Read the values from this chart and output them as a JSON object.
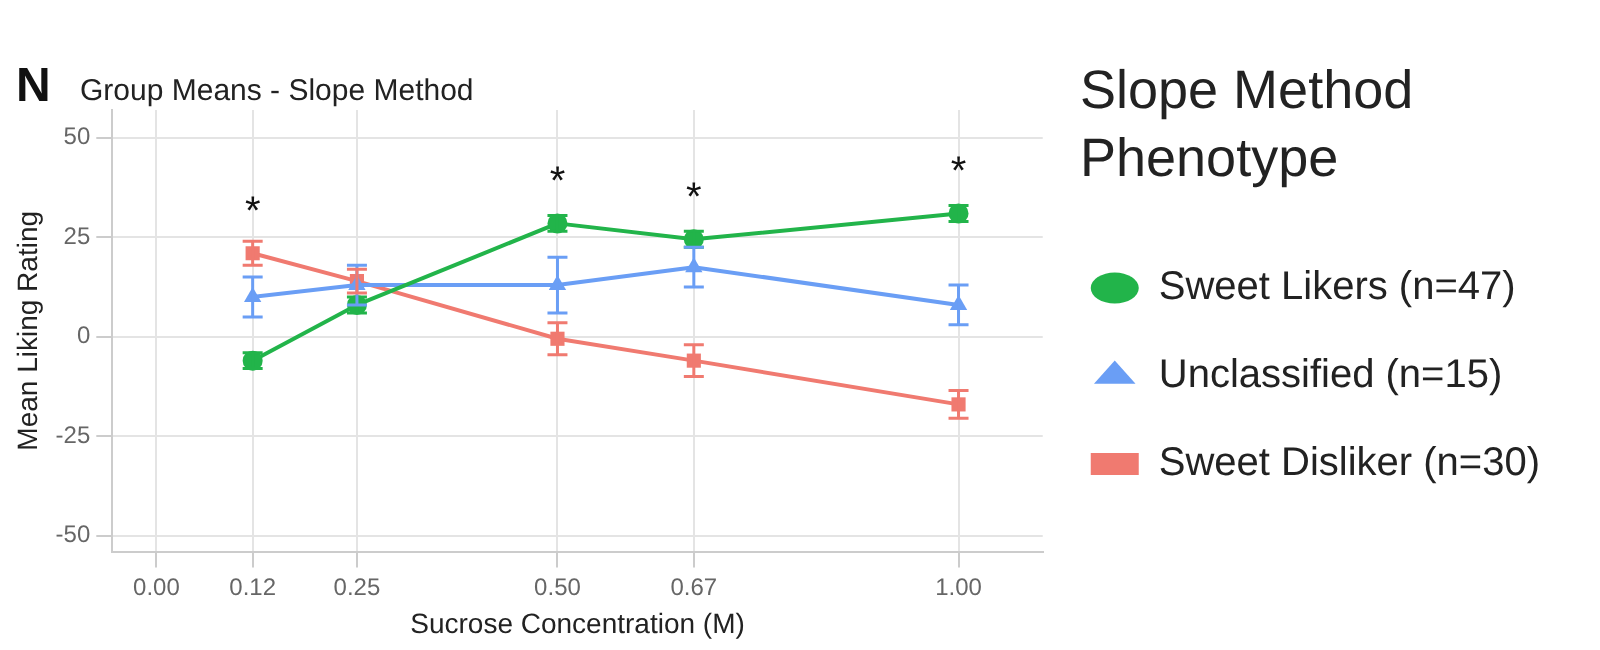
{
  "chart_data": {
    "type": "line",
    "title": "Group Means - Slope Method",
    "xlabel": "Sucrose Concentration (M)",
    "ylabel": "Mean Liking Rating",
    "legend_title": "Slope Method Phenotype",
    "x": [
      0.12,
      0.25,
      0.5,
      0.67,
      1.0
    ],
    "series": [
      {
        "name": "Sweet Likers (n=47)",
        "color": "#22b44a",
        "marker": "circle",
        "values": [
          -6,
          8,
          28.5,
          24.5,
          31
        ],
        "errors": [
          2,
          2,
          2,
          2,
          2
        ]
      },
      {
        "name": "Unclassified (n=15)",
        "color": "#6a9ef5",
        "marker": "triangle",
        "values": [
          10,
          13,
          13,
          17.5,
          8
        ],
        "errors": [
          5,
          5,
          7,
          5,
          5
        ]
      },
      {
        "name": "Sweet Disliker (n=30)",
        "color": "#f07a70",
        "marker": "square",
        "values": [
          21,
          14,
          -0.5,
          -6,
          -17
        ],
        "errors": [
          3,
          3,
          4,
          4,
          3.5
        ]
      }
    ],
    "annotations": [
      "N",
      {
        "text": "*",
        "x": 0.12,
        "y": 21
      },
      {
        "text": "*",
        "x": 0.5,
        "y": 28.5
      },
      {
        "text": "*",
        "x": 0.67,
        "y": 24.5
      },
      {
        "text": "*",
        "x": 1.0,
        "y": 31
      }
    ],
    "xlim": [
      -0.055,
      1.105
    ],
    "xticks": [
      {
        "value": 0,
        "label": "0.00"
      },
      {
        "value": 0.12,
        "label": "0.12"
      },
      {
        "value": 0.25,
        "label": "0.25"
      },
      {
        "value": 0.5,
        "label": "0.50"
      },
      {
        "value": 0.67,
        "label": "0.67"
      },
      {
        "value": 1,
        "label": "1.00"
      }
    ],
    "ylim": [
      -54,
      57
    ],
    "yticks": [
      -50,
      -25,
      0,
      25,
      50
    ],
    "grid": true,
    "legend": "right",
    "line_style": "solid"
  }
}
